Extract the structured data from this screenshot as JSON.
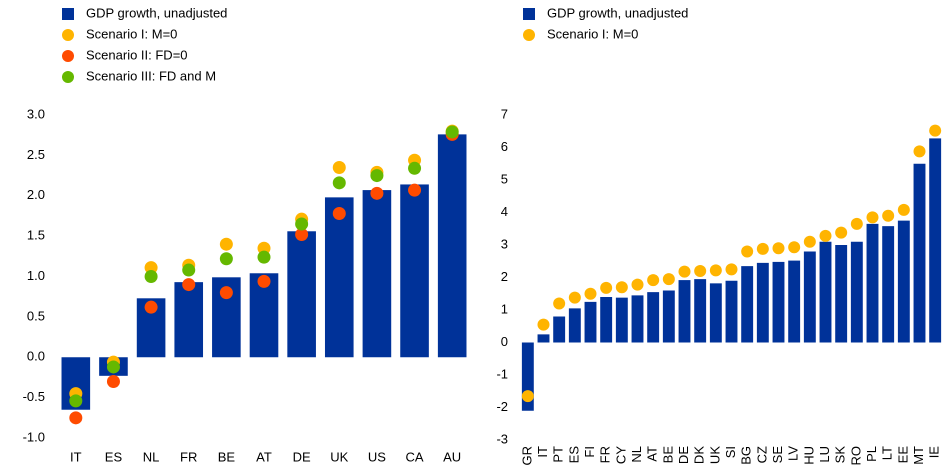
{
  "chart_data": [
    {
      "type": "bar",
      "categories": [
        "IT",
        "ES",
        "NL",
        "FR",
        "BE",
        "AT",
        "DE",
        "UK",
        "US",
        "CA",
        "AU"
      ],
      "series": [
        {
          "name": "GDP growth, unadjusted",
          "type": "bar",
          "color": "#003299",
          "values": [
            -0.65,
            -0.23,
            0.73,
            0.93,
            0.99,
            1.04,
            1.56,
            1.98,
            2.07,
            2.14,
            2.76
          ]
        },
        {
          "name": "Scenario I: M=0",
          "type": "scatter",
          "color": "#ffb400",
          "values": [
            -0.45,
            -0.06,
            1.11,
            1.14,
            1.4,
            1.35,
            1.71,
            2.35,
            2.29,
            2.44,
            2.8
          ]
        },
        {
          "name": "Scenario II: FD=0",
          "type": "scatter",
          "color": "#ff4b00",
          "values": [
            -0.75,
            -0.3,
            0.62,
            0.9,
            0.8,
            0.94,
            1.52,
            1.78,
            2.03,
            2.07,
            2.76
          ]
        },
        {
          "name": "Scenario III: FD and M",
          "type": "scatter",
          "color": "#65b800",
          "values": [
            -0.54,
            -0.12,
            1.0,
            1.08,
            1.22,
            1.24,
            1.65,
            2.16,
            2.25,
            2.34,
            2.79
          ]
        }
      ],
      "ylim": [
        -1,
        3
      ],
      "yticks": [
        {
          "value": -1,
          "label": "-1.0"
        },
        -0.5,
        {
          "value": 0,
          "label": "0.0"
        },
        0.5,
        {
          "value": 1,
          "label": "1.0"
        },
        1.5,
        {
          "value": 2,
          "label": "2.0"
        },
        2.5,
        {
          "value": 3,
          "label": "3.0"
        }
      ]
    },
    {
      "type": "bar",
      "categories": [
        "GR",
        "IT",
        "PT",
        "ES",
        "FI",
        "FR",
        "CY",
        "NL",
        "AT",
        "BE",
        "DE",
        "DK",
        "UK",
        "SI",
        "BG",
        "CZ",
        "SE",
        "LV",
        "HU",
        "LU",
        "SK",
        "RO",
        "PL",
        "LT",
        "EE",
        "MT",
        "IE"
      ],
      "series": [
        {
          "name": "GDP growth, unadjusted",
          "type": "bar",
          "color": "#003299",
          "values": [
            -2.1,
            0.25,
            0.8,
            1.05,
            1.25,
            1.4,
            1.38,
            1.45,
            1.55,
            1.6,
            1.92,
            1.95,
            1.82,
            1.9,
            2.35,
            2.45,
            2.48,
            2.52,
            2.8,
            3.1,
            3.0,
            3.1,
            3.65,
            3.58,
            3.75,
            5.5,
            6.28
          ]
        },
        {
          "name": "Scenario I: M=0",
          "type": "scatter",
          "color": "#ffb400",
          "values": [
            -1.65,
            0.55,
            1.2,
            1.38,
            1.5,
            1.68,
            1.7,
            1.78,
            1.92,
            1.95,
            2.18,
            2.2,
            2.22,
            2.25,
            2.8,
            2.88,
            2.9,
            2.93,
            3.1,
            3.28,
            3.38,
            3.65,
            3.85,
            3.9,
            4.08,
            5.88,
            6.52
          ]
        }
      ],
      "ylim": [
        -3,
        7
      ],
      "yticks": [
        -3,
        -2,
        -1,
        0,
        1,
        2,
        3,
        4,
        5,
        6,
        7
      ]
    }
  ]
}
